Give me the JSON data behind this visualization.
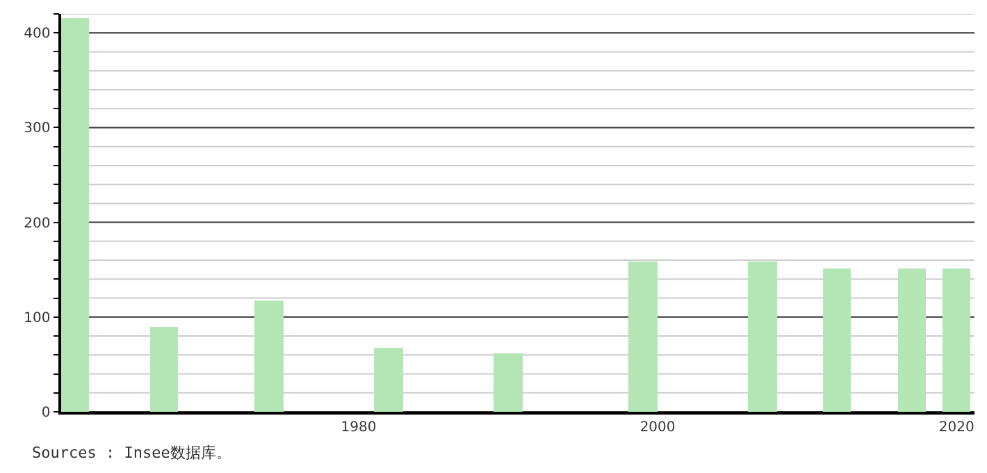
{
  "chart_data": {
    "type": "bar",
    "x": [
      1961,
      1967,
      1974,
      1982,
      1990,
      1999,
      2007,
      2012,
      2017,
      2020
    ],
    "values": [
      415,
      90,
      118,
      67,
      62,
      159,
      159,
      151,
      151,
      152
    ],
    "color": "#b3e5b5",
    "xlim": [
      1960.1,
      2021.2
    ],
    "xticks": [
      1980,
      2000,
      2020
    ],
    "ylim": [
      0,
      420
    ],
    "yticks": [
      0,
      {
        "value": 20,
        "label": null
      },
      {
        "value": 40,
        "label": null
      },
      {
        "value": 60,
        "label": null
      },
      {
        "value": 80,
        "label": null
      },
      100,
      {
        "value": 120,
        "label": null
      },
      {
        "value": 140,
        "label": null
      },
      {
        "value": 160,
        "label": null
      },
      {
        "value": 180,
        "label": null
      },
      200,
      {
        "value": 220,
        "label": null
      },
      {
        "value": 240,
        "label": null
      },
      {
        "value": 260,
        "label": null
      },
      {
        "value": 280,
        "label": null
      },
      300,
      {
        "value": 320,
        "label": null
      },
      {
        "value": 340,
        "label": null
      },
      {
        "value": 360,
        "label": null
      },
      {
        "value": 380,
        "label": null
      },
      400,
      {
        "value": 420,
        "label": null
      }
    ],
    "grid": "y",
    "annotations": [
      "Sources : Insee数据库。"
    ]
  }
}
